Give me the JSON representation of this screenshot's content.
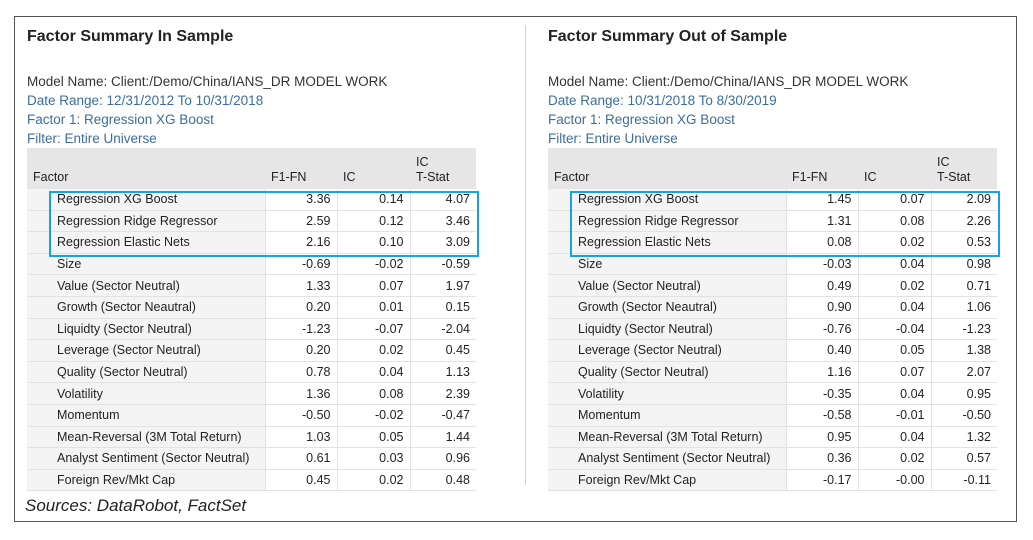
{
  "panels": [
    {
      "title": "Factor Summary In Sample",
      "model_name": "Model Name: Client:/Demo/China/IANS_DR MODEL WORK",
      "date_range": "Date Range: 12/31/2012 To 10/31/2018",
      "factor": "Factor 1: Regression XG Boost",
      "filter": "Filter: Entire Universe",
      "headers": {
        "factor": "Factor",
        "f1fn": "F1-FN",
        "ic": "IC",
        "ic_tstat_1": "IC",
        "ic_tstat_2": "T-Stat"
      },
      "rows": [
        [
          "Regression XG Boost",
          "3.36",
          "0.14",
          "4.07"
        ],
        [
          "Regression Ridge Regressor",
          "2.59",
          "0.12",
          "3.46"
        ],
        [
          "Regression Elastic Nets",
          "2.16",
          "0.10",
          "3.09"
        ],
        [
          "Size",
          "-0.69",
          "-0.02",
          "-0.59"
        ],
        [
          "Value (Sector Neutral)",
          "1.33",
          "0.07",
          "1.97"
        ],
        [
          "Growth (Sector Neautral)",
          "0.20",
          "0.01",
          "0.15"
        ],
        [
          "Liquidty (Sector Neutral)",
          "-1.23",
          "-0.07",
          "-2.04"
        ],
        [
          "Leverage (Sector Neutral)",
          "0.20",
          "0.02",
          "0.45"
        ],
        [
          "Quality (Sector Neutral)",
          "0.78",
          "0.04",
          "1.13"
        ],
        [
          "Volatility",
          "1.36",
          "0.08",
          "2.39"
        ],
        [
          "Momentum",
          "-0.50",
          "-0.02",
          "-0.47"
        ],
        [
          "Mean-Reversal (3M Total Return)",
          "1.03",
          "0.05",
          "1.44"
        ],
        [
          "Analyst Sentiment (Sector Neutral)",
          "0.61",
          "0.03",
          "0.96"
        ],
        [
          "Foreign Rev/Mkt Cap",
          "0.45",
          "0.02",
          "0.48"
        ]
      ]
    },
    {
      "title": "Factor Summary Out of Sample",
      "model_name": "Model Name: Client:/Demo/China/IANS_DR MODEL WORK",
      "date_range": "Date Range: 10/31/2018 To 8/30/2019",
      "factor": "Factor 1: Regression XG Boost",
      "filter": "Filter: Entire Universe",
      "headers": {
        "factor": "Factor",
        "f1fn": "F1-FN",
        "ic": "IC",
        "ic_tstat_1": "IC",
        "ic_tstat_2": "T-Stat"
      },
      "rows": [
        [
          "Regression XG Boost",
          "1.45",
          "0.07",
          "2.09"
        ],
        [
          "Regression Ridge Regressor",
          "1.31",
          "0.08",
          "2.26"
        ],
        [
          "Regression Elastic Nets",
          "0.08",
          "0.02",
          "0.53"
        ],
        [
          "Size",
          "-0.03",
          "0.04",
          "0.98"
        ],
        [
          "Value (Sector Neutral)",
          "0.49",
          "0.02",
          "0.71"
        ],
        [
          "Growth (Sector Neautral)",
          "0.90",
          "0.04",
          "1.06"
        ],
        [
          "Liquidty (Sector Neutral)",
          "-0.76",
          "-0.04",
          "-1.23"
        ],
        [
          "Leverage (Sector Neutral)",
          "0.40",
          "0.05",
          "1.38"
        ],
        [
          "Quality (Sector Neutral)",
          "1.16",
          "0.07",
          "2.07"
        ],
        [
          "Volatility",
          "-0.35",
          "0.04",
          "0.95"
        ],
        [
          "Momentum",
          "-0.58",
          "-0.01",
          "-0.50"
        ],
        [
          "Mean-Reversal (3M Total Return)",
          "0.95",
          "0.04",
          "1.32"
        ],
        [
          "Analyst Sentiment (Sector Neutral)",
          "0.36",
          "0.02",
          "0.57"
        ],
        [
          "Foreign Rev/Mkt Cap",
          "-0.17",
          "-0.00",
          "-0.11"
        ]
      ]
    }
  ],
  "source": "Sources: DataRobot, FactSet",
  "colors": {
    "highlight": "#1aa1df",
    "meta_blue": "#3d6d9e"
  }
}
